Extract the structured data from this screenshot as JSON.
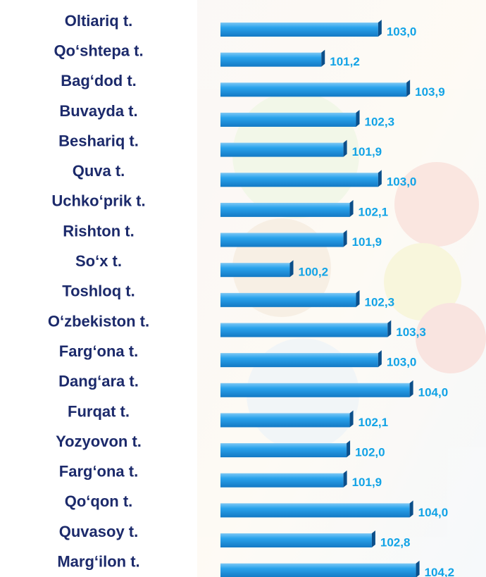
{
  "chart_data": {
    "type": "bar",
    "orientation": "horizontal",
    "color": "#1e9be8",
    "categories": [
      "Oltiariq t.",
      "Qo‘shtepa t.",
      "Bag‘dod t.",
      "Buvayda t.",
      "Beshariq t.",
      "Quva t.",
      "Uchko‘prik t.",
      "Rishton t.",
      "So‘x t.",
      "Toshloq t.",
      "O‘zbekiston t.",
      "Farg‘ona t.",
      "Dang‘ara t.",
      "Furqat t.",
      "Yozyovon t.",
      "Farg‘ona t.",
      "Qo‘qon t.",
      "Quvasoy t.",
      "Marg‘ilon t."
    ],
    "values": [
      103.0,
      101.2,
      103.9,
      102.3,
      101.9,
      103.0,
      102.1,
      101.9,
      100.2,
      102.3,
      103.3,
      103.0,
      104.0,
      102.1,
      102.0,
      101.9,
      104.0,
      102.8,
      104.2
    ],
    "value_labels": [
      "103,0",
      "101,2",
      "103,9",
      "102,3",
      "101,9",
      "103,0",
      "102,1",
      "101,9",
      "100,2",
      "102,3",
      "103,3",
      "103,0",
      "104,0",
      "102,1",
      "102,0",
      "101,9",
      "104,0",
      "102,8",
      "104,2"
    ],
    "xlim": [
      98,
      104.5
    ]
  }
}
